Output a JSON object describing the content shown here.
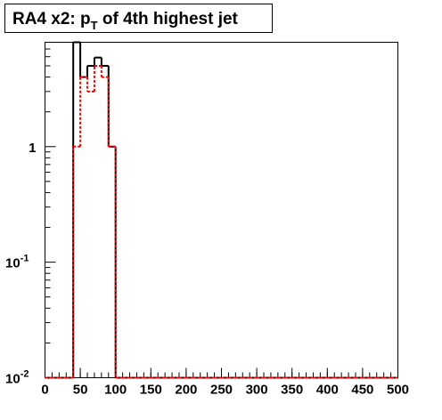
{
  "chart_data": {
    "type": "histogram",
    "log_y": true,
    "title": {
      "text": "RA4 x2: p",
      "subscript": "T",
      "rest": " of 4th highest jet"
    },
    "bins": [
      0,
      10,
      20,
      30,
      40,
      50,
      60,
      70,
      80,
      90,
      100,
      110,
      120,
      130,
      140,
      150,
      160,
      170,
      180,
      190,
      200,
      210,
      220,
      230,
      240,
      250,
      260,
      270,
      280,
      290,
      300,
      310,
      320,
      330,
      340,
      350,
      360,
      370,
      380,
      390,
      400,
      410,
      420,
      430,
      440,
      450,
      460,
      470,
      480,
      490,
      500
    ],
    "series": [
      {
        "color": "#000000",
        "dash": false,
        "values": [
          0,
          0,
          0,
          0,
          8,
          4,
          5,
          5.9,
          5,
          1,
          0,
          0,
          0,
          0,
          0,
          0,
          0,
          0,
          0,
          0,
          0,
          0,
          0,
          0,
          0,
          0,
          0,
          0,
          0,
          0,
          0,
          0,
          0,
          0,
          0,
          0,
          0,
          0,
          0,
          0,
          0,
          0,
          0,
          0,
          0,
          0,
          0,
          0,
          0,
          0
        ]
      },
      {
        "color": "#ff0000",
        "dash": true,
        "values": [
          0,
          0,
          0,
          0,
          1,
          4,
          3,
          5,
          4,
          1,
          0,
          0,
          0,
          0,
          0,
          0,
          0,
          0,
          0,
          0,
          0,
          0,
          0,
          0,
          0,
          0,
          0,
          0,
          0,
          0,
          0,
          0,
          0,
          0,
          0,
          0,
          0,
          0,
          0,
          0,
          0,
          0,
          0,
          0,
          0,
          0,
          0,
          0,
          0,
          0
        ]
      }
    ],
    "xlim": [
      0,
      500
    ],
    "xticks": [
      0,
      50,
      100,
      150,
      200,
      250,
      300,
      350,
      400,
      450,
      500
    ],
    "ylim": [
      0.01,
      8
    ],
    "yticks": [
      {
        "value": 0.01,
        "label": "10",
        "exponent": "-2"
      },
      {
        "value": 0.1,
        "label": "10",
        "exponent": "-1"
      },
      1
    ]
  }
}
